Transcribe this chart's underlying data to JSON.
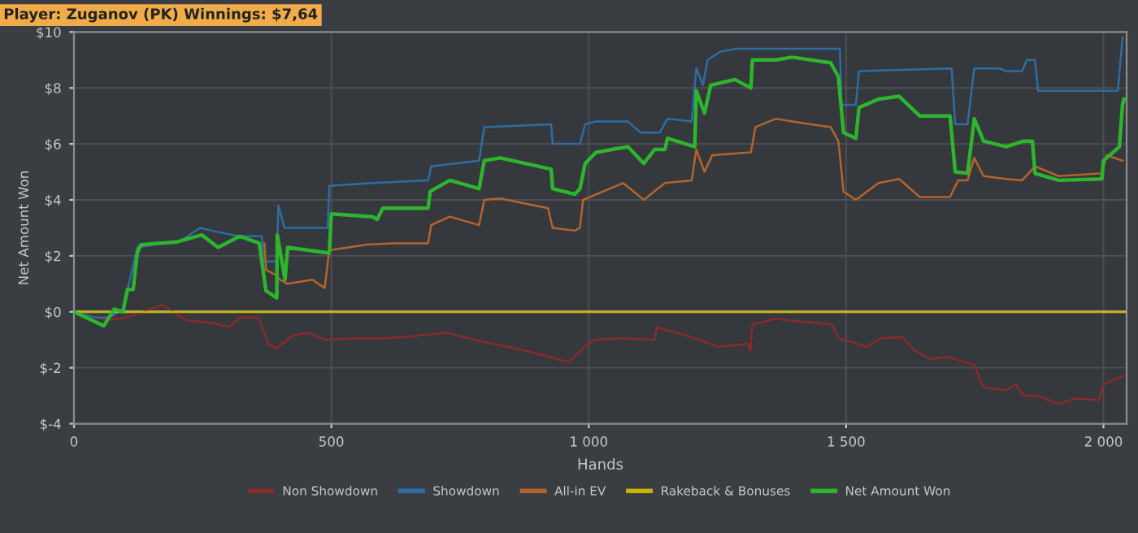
{
  "chart_data": {
    "type": "line",
    "title": "Player: Zuganov (PK) Winnings: $7,64",
    "xlabel": "Hands",
    "ylabel": "Net Amount Won",
    "xlim": [
      0,
      2045
    ],
    "ylim": [
      -4,
      10
    ],
    "xticks": [
      0,
      500,
      {
        "value": 1000,
        "label": "1 000"
      },
      {
        "value": 1500,
        "label": "1 500"
      },
      {
        "value": 2000,
        "label": "2 000"
      }
    ],
    "yticks": [
      {
        "value": -4,
        "label": "$-4"
      },
      {
        "value": -2,
        "label": "$-2"
      },
      {
        "value": 0,
        "label": "$0"
      },
      {
        "value": 2,
        "label": "$2"
      },
      {
        "value": 4,
        "label": "$4"
      },
      {
        "value": 6,
        "label": "$6"
      },
      {
        "value": 8,
        "label": "$8"
      },
      {
        "value": 10,
        "label": "$10"
      }
    ],
    "grid": true,
    "legend": "bottom",
    "marker": "none",
    "line_style": "solid",
    "ref_lines": [
      {
        "axis": "y",
        "value": 0,
        "color": "#c8c8c8"
      }
    ],
    "series": [
      {
        "name": "Non Showdown",
        "color": "#8b2a2a",
        "x": [
          0,
          64,
          104,
          172,
          218,
          270,
          302,
          322,
          358,
          378,
          394,
          425,
          456,
          487,
          540,
          601,
          642,
          725,
          777,
          880,
          962,
          983,
          1009,
          1067,
          1128,
          1132,
          1190,
          1252,
          1310,
          1314,
          1318,
          1364,
          1412,
          1473,
          1485,
          1541,
          1566,
          1609,
          1634,
          1665,
          1696,
          1749,
          1767,
          1811,
          1829,
          1845,
          1873,
          1913,
          1944,
          1991,
          2000,
          2037
        ],
        "values": [
          0,
          -0.3,
          -0.2,
          0.25,
          -0.3,
          -0.4,
          -0.55,
          -0.2,
          -0.2,
          -1.15,
          -1.3,
          -0.85,
          -0.75,
          -1.0,
          -0.95,
          -0.95,
          -0.9,
          -0.75,
          -1.0,
          -1.4,
          -1.8,
          -1.4,
          -1.0,
          -0.95,
          -1.0,
          -0.55,
          -0.85,
          -1.25,
          -1.15,
          -1.4,
          -0.45,
          -0.25,
          -0.35,
          -0.45,
          -0.95,
          -1.25,
          -0.95,
          -0.9,
          -1.4,
          -1.7,
          -1.6,
          -1.9,
          -2.7,
          -2.8,
          -2.6,
          -3.0,
          -3.0,
          -3.3,
          -3.1,
          -3.15,
          -2.6,
          -2.3
        ]
      },
      {
        "name": "Showdown",
        "color": "#2e6da4",
        "x": [
          0,
          40,
          70,
          95,
          104,
          123,
          208,
          245,
          280,
          322,
          365,
          368,
          394,
          397,
          409,
          493,
          496,
          580,
          688,
          694,
          787,
          797,
          927,
          930,
          983,
          993,
          1014,
          1076,
          1101,
          1138,
          1153,
          1200,
          1209,
          1222,
          1231,
          1256,
          1287,
          1488,
          1491,
          1519,
          1525,
          1705,
          1712,
          1736,
          1749,
          1798,
          1811,
          1842,
          1851,
          1867,
          1873,
          2028,
          2037
        ],
        "values": [
          0,
          -0.2,
          -0.2,
          0.1,
          0.8,
          2.3,
          2.55,
          3.0,
          2.85,
          2.7,
          2.7,
          1.8,
          1.8,
          3.8,
          3.0,
          3.0,
          4.5,
          4.6,
          4.7,
          5.2,
          5.4,
          6.6,
          6.7,
          6.0,
          6.0,
          6.7,
          6.8,
          6.8,
          6.4,
          6.4,
          6.9,
          6.8,
          8.7,
          8.1,
          9.0,
          9.3,
          9.4,
          9.4,
          7.4,
          7.4,
          8.6,
          8.7,
          6.7,
          6.7,
          8.7,
          8.7,
          8.6,
          8.6,
          9.0,
          9.0,
          7.9,
          7.9,
          9.8
        ]
      },
      {
        "name": "All-in EV",
        "color": "#b4642a",
        "x": [
          370,
          373,
          394,
          400,
          415,
          463,
          487,
          496,
          570,
          620,
          688,
          694,
          730,
          787,
          797,
          828,
          921,
          930,
          973,
          983,
          989,
          1067,
          1107,
          1148,
          1200,
          1209,
          1225,
          1240,
          1315,
          1324,
          1364,
          1395,
          1470,
          1485,
          1495,
          1519,
          1563,
          1603,
          1643,
          1702,
          1718,
          1736,
          1749,
          1767,
          1811,
          1842,
          1867,
          1913,
          1997,
          2006,
          2037
        ],
        "values": [
          2.45,
          1.5,
          1.3,
          1.15,
          1.0,
          1.15,
          0.85,
          2.2,
          2.4,
          2.45,
          2.45,
          3.1,
          3.4,
          3.1,
          4.0,
          4.05,
          3.7,
          3.0,
          2.9,
          3.0,
          4.0,
          4.6,
          4.0,
          4.6,
          4.7,
          5.8,
          5.0,
          5.6,
          5.7,
          6.6,
          6.9,
          6.8,
          6.6,
          6.1,
          4.3,
          4.0,
          4.6,
          4.75,
          4.1,
          4.1,
          4.7,
          4.7,
          5.5,
          4.85,
          4.75,
          4.7,
          5.2,
          4.85,
          4.95,
          5.6,
          5.4
        ]
      },
      {
        "name": "Rakeback & Bonuses",
        "color": "#c8b400",
        "x": [
          0,
          2040
        ],
        "values": [
          0,
          0
        ]
      },
      {
        "name": "Net Amount Won",
        "color": "#2db52d",
        "x": [
          0,
          58,
          78,
          95,
          104,
          115,
          123,
          130,
          200,
          248,
          280,
          322,
          360,
          373,
          394,
          395,
          410,
          415,
          496,
          500,
          580,
          589,
          600,
          688,
          692,
          730,
          787,
          797,
          828,
          927,
          930,
          973,
          983,
          993,
          1014,
          1076,
          1107,
          1128,
          1148,
          1153,
          1206,
          1209,
          1225,
          1237,
          1284,
          1315,
          1318,
          1364,
          1395,
          1470,
          1485,
          1495,
          1519,
          1525,
          1563,
          1603,
          1643,
          1702,
          1712,
          1736,
          1749,
          1767,
          1811,
          1845,
          1862,
          1867,
          1913,
          1997,
          2000,
          2031,
          2037,
          2040
        ],
        "values": [
          0,
          -0.5,
          0.1,
          0,
          0.8,
          0.8,
          2.1,
          2.4,
          2.5,
          2.75,
          2.3,
          2.7,
          2.45,
          0.75,
          0.5,
          2.75,
          1.15,
          2.3,
          2.1,
          3.5,
          3.4,
          3.3,
          3.7,
          3.7,
          4.3,
          4.7,
          4.4,
          5.4,
          5.5,
          5.1,
          4.4,
          4.2,
          4.4,
          5.3,
          5.7,
          5.9,
          5.3,
          5.8,
          5.8,
          6.2,
          5.9,
          7.9,
          7.1,
          8.1,
          8.3,
          8.0,
          9.0,
          9.0,
          9.1,
          8.9,
          8.4,
          6.4,
          6.2,
          7.3,
          7.6,
          7.7,
          7.0,
          7.0,
          5.0,
          4.95,
          6.9,
          6.1,
          5.9,
          6.1,
          6.1,
          4.95,
          4.7,
          4.75,
          5.4,
          5.9,
          7.4,
          7.6
        ]
      }
    ]
  }
}
